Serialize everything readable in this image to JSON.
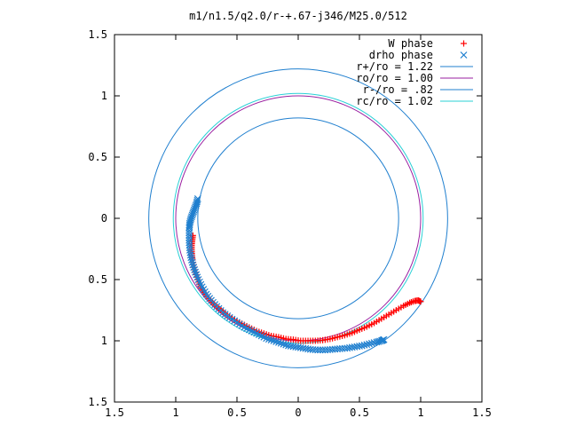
{
  "chart_data": {
    "type": "scatter",
    "title": "m1/n1.5/q2.0/r-+.67-j346/M25.0/512",
    "xlim": [
      -1.5,
      1.5
    ],
    "ylim": [
      -1.5,
      1.5
    ],
    "x_ticks": [
      -1.5,
      -1,
      -0.5,
      0,
      0.5,
      1,
      1.5
    ],
    "y_ticks": [
      -1.5,
      -1,
      -0.5,
      0,
      0.5,
      1,
      1.5
    ],
    "x_tick_labels": [
      "1.5",
      "1",
      "0.5",
      "0",
      "0.5",
      "1",
      "1.5"
    ],
    "y_tick_labels": [
      "1.5",
      "1",
      "0.5",
      "0",
      "0.5",
      "1",
      "1.5"
    ],
    "grid": false,
    "legend_position": "top-right",
    "circles": [
      {
        "name": "r+/ro = 1.22",
        "radius": 1.22,
        "color": "#1f7fcf"
      },
      {
        "name": "ro/ro = 1.00",
        "radius": 1.0,
        "color": "#9a1fa0"
      },
      {
        "name": "r-/ro = .82",
        "radius": 0.82,
        "color": "#1f7fcf"
      },
      {
        "name": "rc/ro = 1.02",
        "radius": 1.02,
        "color": "#2ad0d6"
      }
    ],
    "series": [
      {
        "name": "W phase",
        "marker": "+",
        "color": "#ff0000",
        "points": [
          [
            -0.86,
            -0.14
          ],
          [
            -0.865,
            -0.18
          ],
          [
            -0.87,
            -0.22
          ],
          [
            -0.87,
            -0.26
          ],
          [
            -0.868,
            -0.3
          ],
          [
            -0.862,
            -0.34
          ],
          [
            -0.85,
            -0.4
          ],
          [
            -0.835,
            -0.46
          ],
          [
            -0.815,
            -0.52
          ],
          [
            -0.79,
            -0.57
          ],
          [
            -0.76,
            -0.62
          ],
          [
            -0.72,
            -0.67
          ],
          [
            -0.68,
            -0.71
          ],
          [
            -0.63,
            -0.75
          ],
          [
            -0.58,
            -0.79
          ],
          [
            -0.52,
            -0.83
          ],
          [
            -0.46,
            -0.86
          ],
          [
            -0.4,
            -0.89
          ],
          [
            -0.34,
            -0.92
          ],
          [
            -0.28,
            -0.94
          ],
          [
            -0.22,
            -0.96
          ],
          [
            -0.16,
            -0.97
          ],
          [
            -0.1,
            -0.985
          ],
          [
            -0.04,
            -0.99
          ],
          [
            0.02,
            -1.0
          ],
          [
            0.08,
            -1.0
          ],
          [
            0.14,
            -1.0
          ],
          [
            0.2,
            -0.995
          ],
          [
            0.26,
            -0.985
          ],
          [
            0.32,
            -0.97
          ],
          [
            0.38,
            -0.955
          ],
          [
            0.44,
            -0.935
          ],
          [
            0.5,
            -0.91
          ],
          [
            0.56,
            -0.885
          ],
          [
            0.62,
            -0.855
          ],
          [
            0.68,
            -0.82
          ],
          [
            0.74,
            -0.785
          ],
          [
            0.8,
            -0.75
          ],
          [
            0.86,
            -0.715
          ],
          [
            0.91,
            -0.69
          ],
          [
            0.95,
            -0.675
          ],
          [
            0.98,
            -0.67
          ],
          [
            1.0,
            -0.68
          ]
        ]
      },
      {
        "name": "drho phase",
        "marker": "x",
        "color": "#1f7fcf",
        "points": [
          [
            -0.82,
            0.16
          ],
          [
            -0.83,
            0.12
          ],
          [
            -0.845,
            0.08
          ],
          [
            -0.86,
            0.04
          ],
          [
            -0.875,
            0.0
          ],
          [
            -0.885,
            -0.04
          ],
          [
            -0.89,
            -0.08
          ],
          [
            -0.89,
            -0.14
          ],
          [
            -0.89,
            -0.2
          ],
          [
            -0.885,
            -0.26
          ],
          [
            -0.875,
            -0.32
          ],
          [
            -0.86,
            -0.38
          ],
          [
            -0.84,
            -0.44
          ],
          [
            -0.815,
            -0.5
          ],
          [
            -0.785,
            -0.56
          ],
          [
            -0.75,
            -0.62
          ],
          [
            -0.71,
            -0.67
          ],
          [
            -0.665,
            -0.72
          ],
          [
            -0.615,
            -0.77
          ],
          [
            -0.56,
            -0.81
          ],
          [
            -0.5,
            -0.85
          ],
          [
            -0.44,
            -0.89
          ],
          [
            -0.38,
            -0.92
          ],
          [
            -0.32,
            -0.95
          ],
          [
            -0.26,
            -0.98
          ],
          [
            -0.2,
            -1.0
          ],
          [
            -0.14,
            -1.02
          ],
          [
            -0.08,
            -1.04
          ],
          [
            -0.02,
            -1.05
          ],
          [
            0.04,
            -1.06
          ],
          [
            0.1,
            -1.07
          ],
          [
            0.16,
            -1.075
          ],
          [
            0.22,
            -1.075
          ],
          [
            0.28,
            -1.07
          ],
          [
            0.34,
            -1.065
          ],
          [
            0.4,
            -1.06
          ],
          [
            0.46,
            -1.05
          ],
          [
            0.52,
            -1.04
          ],
          [
            0.58,
            -1.025
          ],
          [
            0.64,
            -1.01
          ],
          [
            0.68,
            -1.0
          ],
          [
            0.7,
            -0.99
          ]
        ]
      }
    ]
  }
}
